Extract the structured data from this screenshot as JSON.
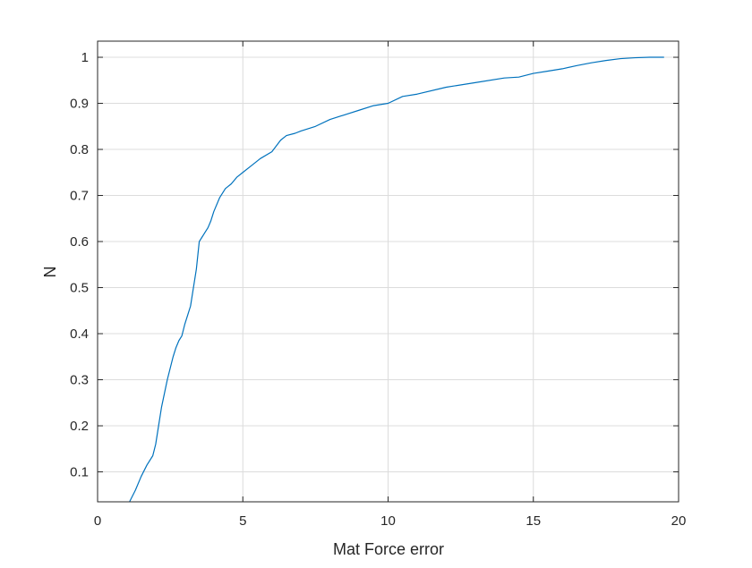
{
  "chart_data": {
    "type": "line",
    "title": "",
    "xlabel": "Mat Force error",
    "ylabel": "N",
    "xlim": [
      0,
      20
    ],
    "ylim": [
      0.035,
      1.035
    ],
    "grid": true,
    "legend": "none",
    "x_ticks": [
      "0",
      "5",
      "10",
      "15",
      "20"
    ],
    "y_ticks": [
      "0.1",
      "0.2",
      "0.3",
      "0.4",
      "0.5",
      "0.6",
      "0.7",
      "0.8",
      "0.9",
      "1"
    ],
    "series": [
      {
        "color": "#0072BD",
        "x": [
          1.1,
          1.3,
          1.5,
          1.7,
          1.9,
          2.0,
          2.1,
          2.2,
          2.3,
          2.4,
          2.5,
          2.6,
          2.7,
          2.8,
          2.9,
          3.0,
          3.1,
          3.2,
          3.3,
          3.4,
          3.5,
          3.6,
          3.65,
          3.7,
          3.8,
          3.9,
          4.0,
          4.2,
          4.4,
          4.6,
          4.8,
          5.0,
          5.3,
          5.6,
          6.0,
          6.3,
          6.5,
          6.8,
          7.0,
          7.5,
          8.0,
          8.5,
          9.0,
          9.5,
          10.0,
          10.5,
          11.0,
          12.0,
          13.0,
          14.0,
          14.5,
          15.0,
          15.5,
          16.0,
          16.5,
          17.0,
          17.5,
          18.0,
          18.5,
          19.0,
          19.5
        ],
        "y": [
          0.035,
          0.06,
          0.09,
          0.115,
          0.135,
          0.16,
          0.2,
          0.24,
          0.27,
          0.3,
          0.325,
          0.35,
          0.37,
          0.385,
          0.395,
          0.42,
          0.44,
          0.46,
          0.5,
          0.54,
          0.6,
          0.61,
          0.615,
          0.62,
          0.63,
          0.645,
          0.665,
          0.695,
          0.715,
          0.725,
          0.74,
          0.75,
          0.765,
          0.78,
          0.795,
          0.82,
          0.83,
          0.835,
          0.84,
          0.85,
          0.865,
          0.875,
          0.885,
          0.895,
          0.9,
          0.915,
          0.92,
          0.935,
          0.945,
          0.955,
          0.957,
          0.965,
          0.97,
          0.975,
          0.982,
          0.988,
          0.993,
          0.997,
          0.999,
          1.0,
          1.0
        ]
      }
    ]
  }
}
